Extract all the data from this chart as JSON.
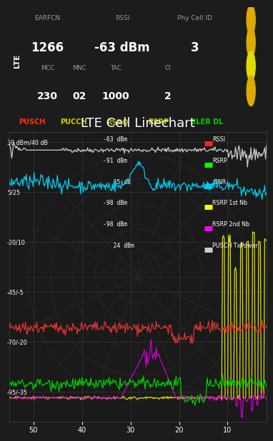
{
  "title": "LTE Cell Linechart",
  "bg_color": "#1c1c1c",
  "plot_bg": "#1a1a1a",
  "header_bg": "#222222",
  "title_color": "white",
  "xlim": [
    55,
    2
  ],
  "ylim": [
    -110,
    35
  ],
  "ytick_vals": [
    30,
    5,
    -20,
    -45,
    -70,
    -95
  ],
  "ytick_labels": [
    "30 dBm/40 dB",
    "5/25",
    "-20/10",
    "-45/-5",
    "-70/-20",
    "-95/-35"
  ],
  "xtick_vals": [
    50,
    40,
    30,
    20,
    10
  ],
  "xtick_labels": [
    "50",
    "40",
    "30",
    "20",
    "10"
  ],
  "header_rows": [
    {
      "EARFCN": "1266",
      "RSSI": "-63 dBm",
      "Phy Cell ID": "3"
    },
    {
      "MCC": "230",
      "MNC": "02",
      "TAC": "1000",
      "CI": "2"
    }
  ],
  "badges": [
    "PUSCH",
    "PUCCH",
    "RSRQ",
    "RSRP",
    "BLER DL"
  ],
  "badge_colors": [
    "#ff3300",
    "#cccc00",
    "#aaaa00",
    "#cccc00",
    "#00cc00"
  ],
  "legend_items": [
    {
      "val": "-63 dBm",
      "dot_color": "#ff2222",
      "label": "RSSI"
    },
    {
      "val": "-91 dBm",
      "dot_color": "#00ff00",
      "label": "RSRP"
    },
    {
      "val": "   15 dB",
      "dot_color": "#00ccff",
      "label": "CINR"
    },
    {
      "val": "-98 dBm",
      "dot_color": "#ffff00",
      "label": "RSRP 1st Nb"
    },
    {
      "val": "-98 dBm",
      "dot_color": "#ff00ff",
      "label": "RSRP 2nd Nb"
    },
    {
      "val": "   24 dBm",
      "dot_color": "#cccccc",
      "label": "PUSCH TxPower"
    }
  ],
  "line_colors": [
    "#dd3333",
    "#00cc00",
    "#00ccee",
    "#dddd00",
    "#cc00cc",
    "#bbbbbb"
  ],
  "icon_colors": [
    "#ddaa00",
    "#ddaa00",
    "#dddd00",
    "#ddaa00"
  ]
}
